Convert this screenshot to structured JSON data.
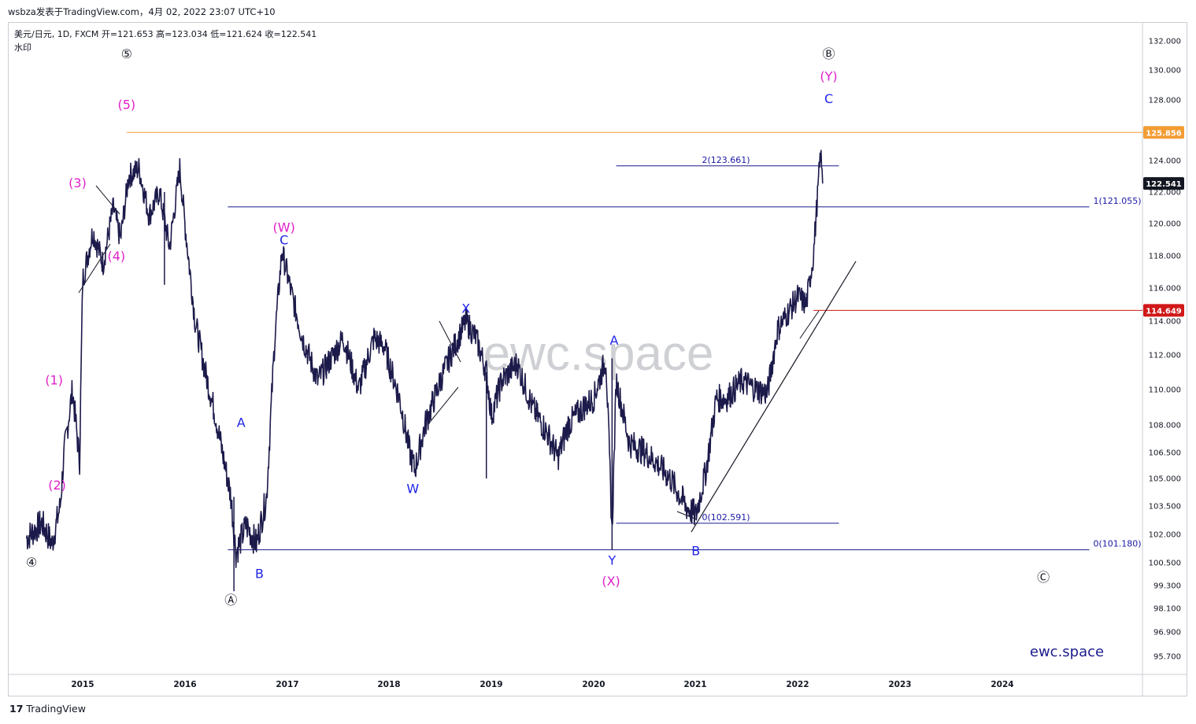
{
  "header": {
    "title": "wsbza发表于TradingView.com，4月 02, 2022 23:07 UTC+10"
  },
  "legend": {
    "line1": "美元/日元, 1D, FXCM  开=121.653  高=123.034  低=121.624  收=122.541",
    "line2": "水印"
  },
  "footer": {
    "logo_text": "TradingView"
  },
  "watermark": "ewc.space",
  "brand": "ewc.space",
  "colors": {
    "candles": "#1c1a4a",
    "channel": "#1a1a8c",
    "orange": "#f39c34",
    "red": "#d11818",
    "magenta": "#e020c8",
    "blue": "#1f25e6"
  },
  "chart_data": {
    "type": "line",
    "symbol": "美元/日元",
    "interval": "1D",
    "source": "FXCM",
    "ohlc_last": {
      "open": 121.653,
      "high": 123.034,
      "low": 121.624,
      "close": 122.541
    },
    "y_ticks": [
      132.0,
      130.0,
      128.0,
      124.0,
      122.0,
      120.0,
      118.0,
      116.0,
      114.0,
      112.0,
      110.0,
      108.0,
      106.5,
      105.0,
      103.5,
      102.0,
      100.5,
      99.3,
      98.1,
      96.9,
      95.7
    ],
    "x_ticks": [
      "2015",
      "2016",
      "2017",
      "2018",
      "2019",
      "2020",
      "2021",
      "2022",
      "2023",
      "2024"
    ],
    "price_labels": [
      {
        "value": "125.856",
        "color": "#f39c34"
      },
      {
        "value": "122.541",
        "color": "#131722"
      },
      {
        "value": "114.649",
        "color": "#d11818"
      }
    ],
    "price_series": [
      [
        2014.45,
        101.8
      ],
      [
        2014.6,
        102.6
      ],
      [
        2014.7,
        101.5
      ],
      [
        2014.78,
        103.5
      ],
      [
        2014.82,
        106.5
      ],
      [
        2014.9,
        110.0
      ],
      [
        2014.97,
        106.0
      ],
      [
        2015.0,
        116.5
      ],
      [
        2015.1,
        119.5
      ],
      [
        2015.2,
        117.5
      ],
      [
        2015.3,
        121.0
      ],
      [
        2015.37,
        119.0
      ],
      [
        2015.45,
        123.0
      ],
      [
        2015.55,
        123.5
      ],
      [
        2015.65,
        120.5
      ],
      [
        2015.75,
        122.0
      ],
      [
        2015.85,
        118.5
      ],
      [
        2015.95,
        123.5
      ],
      [
        2016.0,
        120.0
      ],
      [
        2016.1,
        114.0
      ],
      [
        2016.2,
        111.0
      ],
      [
        2016.3,
        108.5
      ],
      [
        2016.45,
        104.0
      ],
      [
        2016.5,
        101.0
      ],
      [
        2016.6,
        102.5
      ],
      [
        2016.7,
        101.5
      ],
      [
        2016.8,
        104.0
      ],
      [
        2016.88,
        113.0
      ],
      [
        2016.95,
        118.3
      ],
      [
        2017.05,
        115.5
      ],
      [
        2017.15,
        113.0
      ],
      [
        2017.3,
        110.5
      ],
      [
        2017.45,
        112.0
      ],
      [
        2017.55,
        113.0
      ],
      [
        2017.7,
        110.0
      ],
      [
        2017.85,
        113.0
      ],
      [
        2017.95,
        112.5
      ],
      [
        2018.1,
        109.5
      ],
      [
        2018.2,
        106.5
      ],
      [
        2018.25,
        105.5
      ],
      [
        2018.35,
        108.0
      ],
      [
        2018.5,
        110.5
      ],
      [
        2018.6,
        112.0
      ],
      [
        2018.75,
        114.0
      ],
      [
        2018.85,
        113.0
      ],
      [
        2018.95,
        111.0
      ],
      [
        2019.0,
        108.5
      ],
      [
        2019.1,
        110.5
      ],
      [
        2019.25,
        111.5
      ],
      [
        2019.4,
        109.0
      ],
      [
        2019.55,
        107.5
      ],
      [
        2019.65,
        106.2
      ],
      [
        2019.75,
        108.0
      ],
      [
        2019.9,
        109.0
      ],
      [
        2020.0,
        109.5
      ],
      [
        2020.12,
        111.8
      ],
      [
        2020.18,
        102.0
      ],
      [
        2020.22,
        110.5
      ],
      [
        2020.35,
        107.0
      ],
      [
        2020.5,
        106.5
      ],
      [
        2020.6,
        106.0
      ],
      [
        2020.75,
        105.0
      ],
      [
        2020.9,
        103.5
      ],
      [
        2021.0,
        103.0
      ],
      [
        2021.1,
        105.5
      ],
      [
        2021.2,
        109.5
      ],
      [
        2021.3,
        109.5
      ],
      [
        2021.45,
        110.5
      ],
      [
        2021.6,
        110.0
      ],
      [
        2021.7,
        109.8
      ],
      [
        2021.8,
        113.5
      ],
      [
        2021.9,
        114.5
      ],
      [
        2022.0,
        115.5
      ],
      [
        2022.08,
        115.0
      ],
      [
        2022.15,
        118.0
      ],
      [
        2022.22,
        124.5
      ],
      [
        2022.24,
        122.541
      ]
    ],
    "lines": [
      {
        "name": "orange-resistance",
        "y": 125.856,
        "x_from": 2015.43
      },
      {
        "name": "red-level",
        "y": 114.649,
        "x_from": 2022.15
      },
      {
        "name": "fib-1-121",
        "y": 121.055,
        "x_from": 2016.42,
        "x_to": 2024.85,
        "label": "1(121.055)"
      },
      {
        "name": "fib-0-101",
        "y": 101.18,
        "x_from": 2016.42,
        "x_to": 2024.85,
        "label": "0(101.180)"
      },
      {
        "name": "fib-2-123",
        "y": 123.661,
        "x_from": 2020.22,
        "x_to": 2022.4,
        "label": "2(123.661)"
      },
      {
        "name": "fib-0-102",
        "y": 102.591,
        "x_from": 2020.22,
        "x_to": 2022.4,
        "label": "0(102.591)"
      }
    ],
    "wave_labels": [
      {
        "text": "⑤",
        "x": 2015.43,
        "y": 130.8,
        "color": "#131722"
      },
      {
        "text": "(5)",
        "x": 2015.43,
        "y": 127.4,
        "color": "#e020c8"
      },
      {
        "text": "(3)",
        "x": 2014.95,
        "y": 122.3,
        "color": "#e020c8"
      },
      {
        "text": "(4)",
        "x": 2015.33,
        "y": 117.7,
        "color": "#e020c8"
      },
      {
        "text": "(1)",
        "x": 2014.72,
        "y": 110.3,
        "color": "#e020c8"
      },
      {
        "text": "(2)",
        "x": 2014.75,
        "y": 104.4,
        "color": "#e020c8"
      },
      {
        "text": "④",
        "x": 2014.5,
        "y": 100.3,
        "color": "#131722"
      },
      {
        "text": "A",
        "x": 2016.55,
        "y": 107.9,
        "color": "#1f25e6"
      },
      {
        "text": "B",
        "x": 2016.73,
        "y": 99.7,
        "color": "#1f25e6"
      },
      {
        "text": "Ⓐ",
        "x": 2016.45,
        "y": 98.3,
        "color": "#131722"
      },
      {
        "text": "(W)",
        "x": 2016.97,
        "y": 119.5,
        "color": "#e020c8"
      },
      {
        "text": "C",
        "x": 2016.97,
        "y": 118.7,
        "color": "#1f25e6"
      },
      {
        "text": "W",
        "x": 2018.23,
        "y": 104.2,
        "color": "#1f25e6"
      },
      {
        "text": "X",
        "x": 2018.75,
        "y": 114.5,
        "color": "#1f25e6"
      },
      {
        "text": "A",
        "x": 2020.2,
        "y": 112.6,
        "color": "#1f25e6"
      },
      {
        "text": "Y",
        "x": 2020.18,
        "y": 100.4,
        "color": "#1f25e6"
      },
      {
        "text": "(X)",
        "x": 2020.17,
        "y": 99.3,
        "color": "#e020c8"
      },
      {
        "text": "B",
        "x": 2021.0,
        "y": 100.9,
        "color": "#1f25e6"
      },
      {
        "text": "Ⓑ",
        "x": 2022.3,
        "y": 130.8,
        "color": "#131722"
      },
      {
        "text": "(Y)",
        "x": 2022.3,
        "y": 129.3,
        "color": "#e020c8"
      },
      {
        "text": "C",
        "x": 2022.3,
        "y": 127.8,
        "color": "#1f25e6"
      },
      {
        "text": "Ⓒ",
        "x": 2024.4,
        "y": 99.5,
        "color": "#131722"
      }
    ]
  }
}
